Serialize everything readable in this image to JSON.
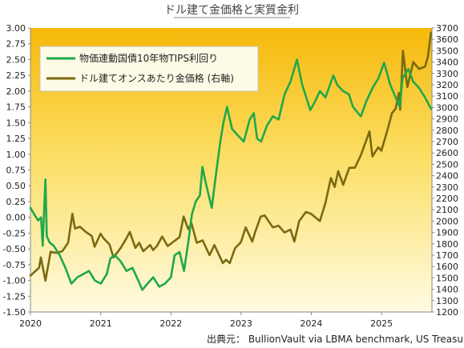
{
  "chart_data": {
    "type": "line",
    "title": "ドル建て金価格と実質金利",
    "source": "出典元： BullionVault  via LBMA benchmark, US Treasury",
    "x_ticks": [
      "2020",
      "2021",
      "2022",
      "2023",
      "2024",
      "2025"
    ],
    "ylim_left": [
      -1.5,
      3.0
    ],
    "ylim_right": [
      1200,
      3700
    ],
    "left_ticks": [
      "3.00",
      "2.75",
      "2.50",
      "2.25",
      "2.00",
      "1.75",
      "1.50",
      "1.25",
      "1.00",
      "0.75",
      "0.50",
      "0.25",
      "0.00",
      "-0.25",
      "-0.50",
      "-0.75",
      "-1.00",
      "-1.25",
      "-1.50"
    ],
    "right_ticks": [
      "3700",
      "3600",
      "3500",
      "3400",
      "3300",
      "3200",
      "3100",
      "3000",
      "2900",
      "2800",
      "2700",
      "2600",
      "2500",
      "2400",
      "2300",
      "2200",
      "2100",
      "2000",
      "1900",
      "1800",
      "1700",
      "1600",
      "1500",
      "1400",
      "1300",
      "1200"
    ],
    "legend_position": "top-left",
    "grid": false,
    "series": [
      {
        "name": "物価連動国債10年物TIPS利回り",
        "axis": "left",
        "color": "#1fa84a",
        "points": [
          [
            "2020-01-01",
            0.15
          ],
          [
            "2020-01-20",
            0.05
          ],
          [
            "2020-02-10",
            -0.05
          ],
          [
            "2020-02-25",
            0.0
          ],
          [
            "2020-03-05",
            -0.45
          ],
          [
            "2020-03-12",
            0.1
          ],
          [
            "2020-03-19",
            0.6
          ],
          [
            "2020-03-26",
            -0.3
          ],
          [
            "2020-04-10",
            -0.4
          ],
          [
            "2020-05-01",
            -0.45
          ],
          [
            "2020-06-01",
            -0.6
          ],
          [
            "2020-07-01",
            -0.8
          ],
          [
            "2020-08-01",
            -1.05
          ],
          [
            "2020-09-01",
            -0.95
          ],
          [
            "2020-10-01",
            -0.9
          ],
          [
            "2020-11-01",
            -0.85
          ],
          [
            "2020-12-01",
            -1.0
          ],
          [
            "2021-01-01",
            -1.05
          ],
          [
            "2021-02-01",
            -0.9
          ],
          [
            "2021-02-20",
            -0.65
          ],
          [
            "2021-03-15",
            -0.6
          ],
          [
            "2021-04-15",
            -0.7
          ],
          [
            "2021-05-15",
            -0.85
          ],
          [
            "2021-06-15",
            -0.8
          ],
          [
            "2021-07-15",
            -1.0
          ],
          [
            "2021-08-05",
            -1.15
          ],
          [
            "2021-09-01",
            -1.05
          ],
          [
            "2021-10-01",
            -0.95
          ],
          [
            "2021-11-01",
            -1.1
          ],
          [
            "2021-12-01",
            -1.05
          ],
          [
            "2022-01-01",
            -0.95
          ],
          [
            "2022-01-20",
            -0.6
          ],
          [
            "2022-02-15",
            -0.55
          ],
          [
            "2022-03-10",
            -0.85
          ],
          [
            "2022-04-01",
            -0.4
          ],
          [
            "2022-04-20",
            0.05
          ],
          [
            "2022-05-10",
            0.25
          ],
          [
            "2022-06-01",
            0.35
          ],
          [
            "2022-06-14",
            0.8
          ],
          [
            "2022-07-01",
            0.55
          ],
          [
            "2022-08-01",
            0.15
          ],
          [
            "2022-08-20",
            0.6
          ],
          [
            "2022-09-15",
            1.2
          ],
          [
            "2022-10-01",
            1.5
          ],
          [
            "2022-10-20",
            1.75
          ],
          [
            "2022-11-15",
            1.4
          ],
          [
            "2022-12-15",
            1.3
          ],
          [
            "2023-01-15",
            1.2
          ],
          [
            "2023-02-15",
            1.55
          ],
          [
            "2023-03-08",
            1.65
          ],
          [
            "2023-03-25",
            1.25
          ],
          [
            "2023-04-15",
            1.2
          ],
          [
            "2023-05-15",
            1.45
          ],
          [
            "2023-06-15",
            1.6
          ],
          [
            "2023-07-15",
            1.55
          ],
          [
            "2023-08-15",
            1.95
          ],
          [
            "2023-09-15",
            2.15
          ],
          [
            "2023-10-19",
            2.5
          ],
          [
            "2023-11-15",
            2.1
          ],
          [
            "2023-12-27",
            1.7
          ],
          [
            "2024-01-15",
            1.8
          ],
          [
            "2024-02-15",
            2.0
          ],
          [
            "2024-03-15",
            1.9
          ],
          [
            "2024-04-25",
            2.25
          ],
          [
            "2024-05-15",
            2.1
          ],
          [
            "2024-06-15",
            2.0
          ],
          [
            "2024-07-15",
            1.95
          ],
          [
            "2024-08-05",
            1.75
          ],
          [
            "2024-09-15",
            1.6
          ],
          [
            "2024-10-15",
            1.85
          ],
          [
            "2024-11-15",
            2.05
          ],
          [
            "2024-12-15",
            2.2
          ],
          [
            "2025-01-14",
            2.45
          ],
          [
            "2025-02-15",
            2.1
          ],
          [
            "2025-03-15",
            1.9
          ],
          [
            "2025-04-05",
            1.75
          ],
          [
            "2025-04-20",
            2.2
          ],
          [
            "2025-05-20",
            2.35
          ],
          [
            "2025-06-15",
            2.15
          ],
          [
            "2025-07-15",
            2.05
          ],
          [
            "2025-08-15",
            1.9
          ],
          [
            "2025-09-15",
            1.72
          ]
        ]
      },
      {
        "name": "ドル建てオンスあたり金価格 (右軸)",
        "axis": "right",
        "color": "#7a6a10",
        "points": [
          [
            "2020-01-01",
            1520
          ],
          [
            "2020-02-15",
            1590
          ],
          [
            "2020-02-24",
            1680
          ],
          [
            "2020-03-19",
            1475
          ],
          [
            "2020-04-15",
            1730
          ],
          [
            "2020-05-15",
            1720
          ],
          [
            "2020-06-15",
            1735
          ],
          [
            "2020-07-15",
            1810
          ],
          [
            "2020-08-06",
            2065
          ],
          [
            "2020-08-20",
            1935
          ],
          [
            "2020-09-15",
            1950
          ],
          [
            "2020-10-15",
            1905
          ],
          [
            "2020-11-15",
            1870
          ],
          [
            "2020-11-30",
            1775
          ],
          [
            "2020-12-31",
            1890
          ],
          [
            "2021-01-15",
            1850
          ],
          [
            "2021-02-15",
            1795
          ],
          [
            "2021-03-08",
            1680
          ],
          [
            "2021-04-15",
            1765
          ],
          [
            "2021-05-15",
            1850
          ],
          [
            "2021-06-01",
            1905
          ],
          [
            "2021-06-30",
            1765
          ],
          [
            "2021-07-20",
            1810
          ],
          [
            "2021-08-10",
            1735
          ],
          [
            "2021-09-15",
            1790
          ],
          [
            "2021-09-30",
            1745
          ],
          [
            "2021-10-20",
            1780
          ],
          [
            "2021-11-16",
            1865
          ],
          [
            "2021-12-15",
            1780
          ],
          [
            "2022-01-15",
            1820
          ],
          [
            "2022-02-15",
            1860
          ],
          [
            "2022-03-08",
            2040
          ],
          [
            "2022-04-01",
            1930
          ],
          [
            "2022-04-18",
            1980
          ],
          [
            "2022-05-15",
            1810
          ],
          [
            "2022-06-15",
            1830
          ],
          [
            "2022-07-21",
            1700
          ],
          [
            "2022-08-15",
            1790
          ],
          [
            "2022-09-28",
            1630
          ],
          [
            "2022-10-15",
            1660
          ],
          [
            "2022-11-03",
            1630
          ],
          [
            "2022-11-30",
            1760
          ],
          [
            "2022-12-31",
            1815
          ],
          [
            "2023-01-25",
            1945
          ],
          [
            "2023-02-28",
            1820
          ],
          [
            "2023-03-15",
            1905
          ],
          [
            "2023-04-13",
            2040
          ],
          [
            "2023-05-04",
            2050
          ],
          [
            "2023-06-15",
            1945
          ],
          [
            "2023-07-15",
            1960
          ],
          [
            "2023-08-15",
            1900
          ],
          [
            "2023-09-15",
            1925
          ],
          [
            "2023-10-05",
            1820
          ],
          [
            "2023-10-30",
            2000
          ],
          [
            "2023-12-04",
            2080
          ],
          [
            "2023-12-31",
            2065
          ],
          [
            "2024-02-15",
            2000
          ],
          [
            "2024-03-15",
            2160
          ],
          [
            "2024-04-12",
            2380
          ],
          [
            "2024-05-02",
            2300
          ],
          [
            "2024-05-20",
            2440
          ],
          [
            "2024-06-15",
            2320
          ],
          [
            "2024-07-17",
            2470
          ],
          [
            "2024-08-15",
            2470
          ],
          [
            "2024-09-15",
            2580
          ],
          [
            "2024-10-30",
            2790
          ],
          [
            "2024-11-14",
            2570
          ],
          [
            "2024-12-15",
            2650
          ],
          [
            "2024-12-31",
            2620
          ],
          [
            "2025-01-31",
            2800
          ],
          [
            "2025-02-24",
            2950
          ],
          [
            "2025-03-15",
            2990
          ],
          [
            "2025-04-01",
            3130
          ],
          [
            "2025-04-08",
            2980
          ],
          [
            "2025-04-22",
            3500
          ],
          [
            "2025-05-15",
            3180
          ],
          [
            "2025-06-15",
            3400
          ],
          [
            "2025-07-15",
            3340
          ],
          [
            "2025-08-15",
            3360
          ],
          [
            "2025-08-30",
            3450
          ],
          [
            "2025-09-15",
            3660
          ]
        ]
      }
    ]
  }
}
